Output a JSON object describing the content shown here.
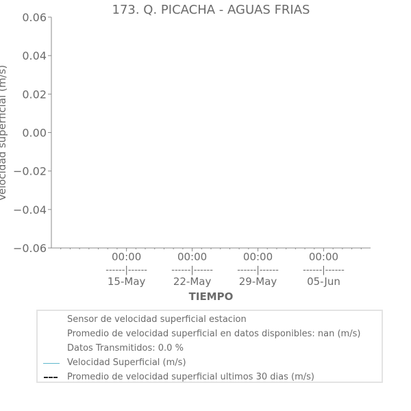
{
  "chart_data": {
    "type": "line",
    "title": "173. Q. PICACHA - AGUAS FRIAS",
    "xlabel": "TIEMPO",
    "ylabel": "Velocidad superficial (m/s)",
    "ylim": [
      -0.06,
      0.06
    ],
    "yticks": [
      "0.06",
      "0.04",
      "0.02",
      "0.00",
      "−0.02",
      "−0.04",
      "−0.06"
    ],
    "ytick_values": [
      0.06,
      0.04,
      0.02,
      0.0,
      -0.02,
      -0.04,
      -0.06
    ],
    "xlim": [
      "2023-05-07",
      "2023-06-10"
    ],
    "xticks": [
      {
        "date": "2023-05-15",
        "time": "00:00",
        "sep": "------|------",
        "label": "15-May"
      },
      {
        "date": "2023-05-22",
        "time": "00:00",
        "sep": "------|------",
        "label": "22-May"
      },
      {
        "date": "2023-05-29",
        "time": "00:00",
        "sep": "------|------",
        "label": "29-May"
      },
      {
        "date": "2023-06-05",
        "time": "00:00",
        "sep": "------|------",
        "label": "05-Jun"
      }
    ],
    "grid": false,
    "legend_position": "below",
    "series": [
      {
        "name": "Velocidad Superficial (m/s)",
        "values": [],
        "color": "#5fb8cc",
        "style": "solid"
      },
      {
        "name": "Promedio de velocidad superficial ultimos 30 dias (m/s)",
        "values": [],
        "color": "#222222",
        "style": "dashdot"
      }
    ]
  },
  "legend": {
    "info_lines": [
      "Sensor de velocidad superficial estacion",
      "Promedio de velocidad superficial en datos disponibles: nan (m/s)",
      "Datos Transmitidos: 0.0 %"
    ],
    "entries": [
      {
        "label": "Velocidad Superficial (m/s)",
        "icon": "solid-line-icon"
      },
      {
        "label": "Promedio de velocidad superficial ultimos 30 dias (m/s)",
        "icon": "dashdot-line-icon"
      }
    ]
  }
}
